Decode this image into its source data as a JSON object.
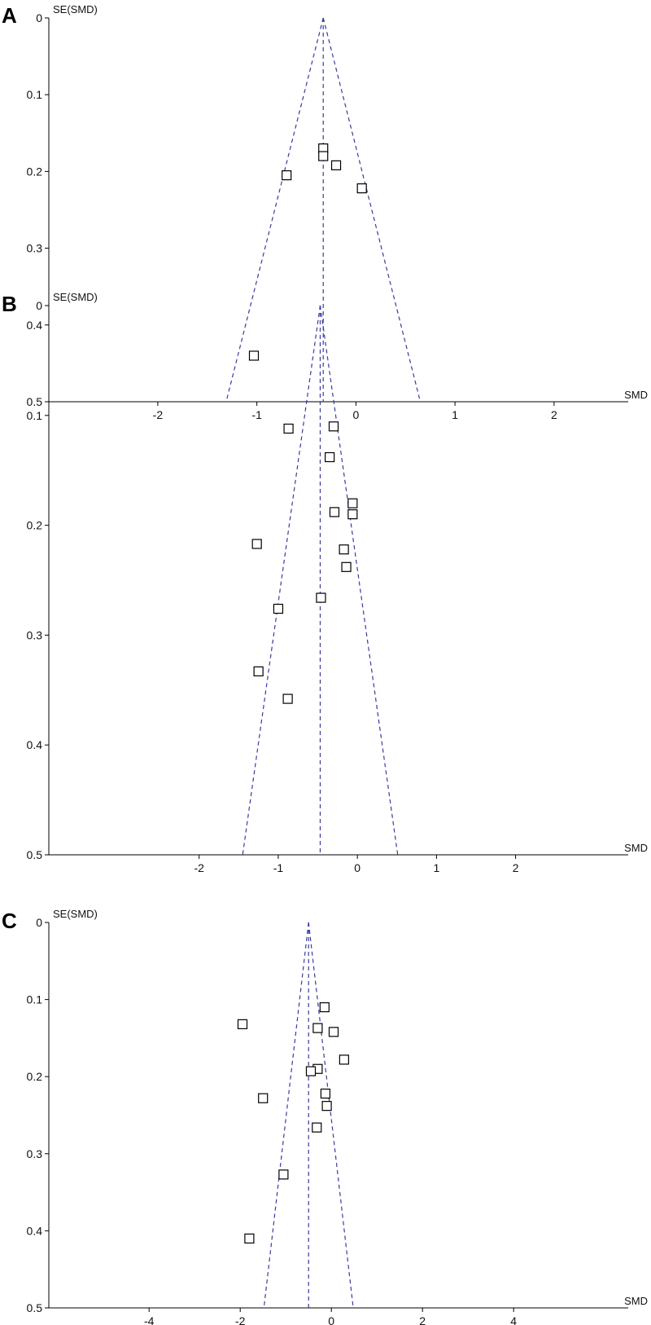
{
  "chart_data": [
    {
      "type": "scatter",
      "panel_label": "A",
      "xlabel": "SMD",
      "ylabel": "SE(SMD)",
      "xlim": [
        -3.1,
        2.65
      ],
      "ylim": [
        0,
        0.5
      ],
      "y_reversed": true,
      "xticks": [
        -2,
        -1,
        0,
        1,
        2
      ],
      "yticks": [
        0,
        0.1,
        0.2,
        0.3,
        0.4,
        0.5
      ],
      "ytick_labels": [
        "0",
        "0.1",
        "0.2",
        "0.3",
        "0.4",
        "0.5"
      ],
      "pooled_effect": -0.33,
      "funnel_bottom_se": 0.5,
      "points": [
        {
          "x": -0.33,
          "y": 0.17
        },
        {
          "x": -0.33,
          "y": 0.18
        },
        {
          "x": -0.7,
          "y": 0.205
        },
        {
          "x": -0.2,
          "y": 0.192
        },
        {
          "x": 0.06,
          "y": 0.222
        },
        {
          "x": -1.03,
          "y": 0.44
        }
      ]
    },
    {
      "type": "scatter",
      "panel_label": "B",
      "xlabel": "SMD",
      "ylabel": "SE(SMD)",
      "xlim": [
        -3.9,
        3.3
      ],
      "ylim": [
        0,
        0.5
      ],
      "y_reversed": true,
      "xticks": [
        -2,
        -1,
        0,
        1,
        2
      ],
      "yticks": [
        0,
        0.1,
        0.2,
        0.3,
        0.4,
        0.5
      ],
      "ytick_labels": [
        "0",
        "0.1",
        "0.2",
        "0.3",
        "0.4",
        "0.5"
      ],
      "pooled_effect": -0.47,
      "funnel_bottom_se": 0.5,
      "points": [
        {
          "x": -0.87,
          "y": 0.112
        },
        {
          "x": -0.3,
          "y": 0.11
        },
        {
          "x": -0.35,
          "y": 0.138
        },
        {
          "x": -0.06,
          "y": 0.18
        },
        {
          "x": -0.06,
          "y": 0.19
        },
        {
          "x": -0.29,
          "y": 0.188
        },
        {
          "x": -1.27,
          "y": 0.217
        },
        {
          "x": -0.17,
          "y": 0.222
        },
        {
          "x": -0.14,
          "y": 0.238
        },
        {
          "x": -0.46,
          "y": 0.266
        },
        {
          "x": -1.0,
          "y": 0.276
        },
        {
          "x": -1.25,
          "y": 0.333
        },
        {
          "x": -0.88,
          "y": 0.358
        }
      ]
    },
    {
      "type": "scatter",
      "panel_label": "C",
      "xlabel": "SMD",
      "ylabel": "SE(SMD)",
      "xlim": [
        -6.2,
        6.3
      ],
      "ylim": [
        0,
        0.5
      ],
      "y_reversed": true,
      "xticks": [
        -4,
        -2,
        0,
        2,
        4
      ],
      "yticks": [
        0,
        0.1,
        0.2,
        0.3,
        0.4,
        0.5
      ],
      "ytick_labels": [
        "0",
        "0.1",
        "0.2",
        "0.3",
        "0.4",
        "0.5"
      ],
      "pooled_effect": -0.5,
      "funnel_bottom_se": 0.5,
      "points": [
        {
          "x": -1.95,
          "y": 0.132
        },
        {
          "x": -0.15,
          "y": 0.11
        },
        {
          "x": -0.3,
          "y": 0.137
        },
        {
          "x": 0.05,
          "y": 0.142
        },
        {
          "x": 0.28,
          "y": 0.178
        },
        {
          "x": -0.3,
          "y": 0.19
        },
        {
          "x": -0.45,
          "y": 0.193
        },
        {
          "x": -1.5,
          "y": 0.228
        },
        {
          "x": -0.13,
          "y": 0.222
        },
        {
          "x": -0.1,
          "y": 0.238
        },
        {
          "x": -0.32,
          "y": 0.266
        },
        {
          "x": -1.05,
          "y": 0.327
        },
        {
          "x": -1.8,
          "y": 0.41
        }
      ]
    }
  ]
}
